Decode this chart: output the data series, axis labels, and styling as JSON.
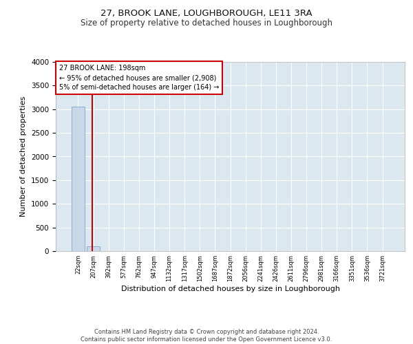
{
  "title": "27, BROOK LANE, LOUGHBOROUGH, LE11 3RA",
  "subtitle": "Size of property relative to detached houses in Loughborough",
  "xlabel": "Distribution of detached houses by size in Loughborough",
  "ylabel": "Number of detached properties",
  "footer_line1": "Contains HM Land Registry data © Crown copyright and database right 2024.",
  "footer_line2": "Contains public sector information licensed under the Open Government Licence v3.0.",
  "bar_labels": [
    "22sqm",
    "207sqm",
    "392sqm",
    "577sqm",
    "762sqm",
    "947sqm",
    "1132sqm",
    "1317sqm",
    "1502sqm",
    "1687sqm",
    "1872sqm",
    "2056sqm",
    "2241sqm",
    "2426sqm",
    "2611sqm",
    "2796sqm",
    "2981sqm",
    "3166sqm",
    "3351sqm",
    "3536sqm",
    "3721sqm"
  ],
  "bar_values": [
    3060,
    100,
    0,
    0,
    0,
    0,
    0,
    0,
    0,
    0,
    0,
    0,
    0,
    0,
    0,
    0,
    0,
    0,
    0,
    0,
    0
  ],
  "bar_color": "#c8d8e8",
  "bar_edge_color": "#7099bb",
  "background_color": "#dce8f0",
  "annotation_line1": "27 BROOK LANE: 198sqm",
  "annotation_line2": "← 95% of detached houses are smaller (2,908)",
  "annotation_line3": "5% of semi-detached houses are larger (164) →",
  "property_line_color": "#cc0000",
  "annotation_box_color": "#cc0000",
  "ylim": [
    0,
    4000
  ],
  "yticks": [
    0,
    500,
    1000,
    1500,
    2000,
    2500,
    3000,
    3500,
    4000
  ],
  "title_fontsize": 9.5,
  "subtitle_fontsize": 8.5,
  "xlabel_fontsize": 8,
  "ylabel_fontsize": 8
}
